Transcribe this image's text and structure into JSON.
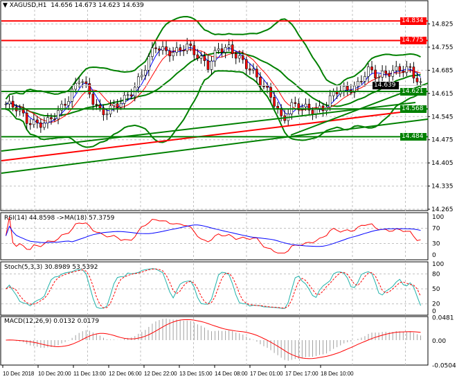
{
  "header": {
    "symbol": "XAGUSD,H1",
    "open": "14.656",
    "high": "14.673",
    "low": "14.623",
    "close": "14.639"
  },
  "rsi": {
    "label": "RSI(14) 44.8598 ->MA(18) 57.3759",
    "ticks": [
      "100",
      "70",
      "30",
      "0"
    ]
  },
  "stoch": {
    "label": "Stoch(5,3,3) 30.8989 53.5392",
    "ticks": [
      "100",
      "80",
      "50",
      "20",
      "0"
    ]
  },
  "macd": {
    "label": "MACD(12,26,9) 0.0132 0.0179",
    "ticks": [
      "0.0481",
      "0.00",
      "-0.0504"
    ]
  },
  "price_axis": [
    "14.825",
    "14.755",
    "14.685",
    "14.615",
    "14.545",
    "14.475",
    "14.405",
    "14.335",
    "14.265"
  ],
  "levels": [
    {
      "value": "14.834",
      "color": "#ff0000"
    },
    {
      "value": "14.775",
      "color": "#ff0000"
    },
    {
      "value": "14.639",
      "color": "#000000"
    },
    {
      "value": "14.621",
      "color": "#008000"
    },
    {
      "value": "14.568",
      "color": "#008000"
    },
    {
      "value": "14.484",
      "color": "#008000"
    }
  ],
  "time_axis": [
    "10 Dec 2018",
    "10 Dec 20:00",
    "11 Dec 13:00",
    "12 Dec 06:00",
    "12 Dec 22:00",
    "13 Dec 15:00",
    "14 Dec 08:00",
    "17 Dec 01:00",
    "17 Dec 17:00",
    "18 Dec 10:00"
  ],
  "chart_data": {
    "type": "candlestick",
    "title": "XAGUSD,H1",
    "ylim": [
      14.265,
      14.834
    ],
    "closes": [
      14.583,
      14.573,
      14.531,
      14.521,
      14.531,
      14.562,
      14.604,
      14.667,
      14.604,
      14.552,
      14.573,
      14.594,
      14.625,
      14.688,
      14.761,
      14.74,
      14.74,
      14.761,
      14.73,
      14.698,
      14.751,
      14.751,
      14.719,
      14.688,
      14.646,
      14.604,
      14.531,
      14.583,
      14.573,
      14.562,
      14.573,
      14.625,
      14.625,
      14.636,
      14.688,
      14.667,
      14.678,
      14.688,
      14.688,
      14.639
    ],
    "colors": {
      "bollinger": "#008000",
      "ma_fast": "#0000ff",
      "ma_slow": "#ff0000",
      "ma200": "#ff0000",
      "trendline": "#008000"
    }
  }
}
